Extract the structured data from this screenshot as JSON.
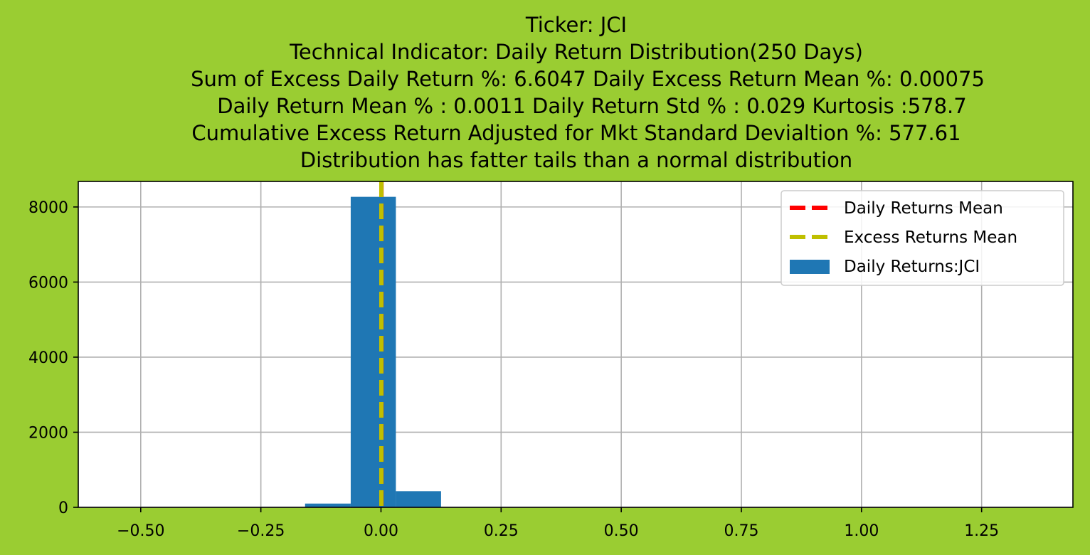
{
  "chart_data": {
    "type": "bar",
    "title_lines": [
      "Ticker: JCI",
      "Technical Indicator: Daily Return Distribution(250 Days)",
      "Sum of Excess Daily Return %: 6.6047   Daily Excess Return Mean %: 0.00075",
      "Daily Return Mean % : 0.0011    Daily Return Std % : 0.029  Kurtosis :578.7",
      "Cumulative Excess Return Adjusted for Mkt Standard Devialtion %: 577.61",
      "Distribution has fatter tails than a normal distribution"
    ],
    "xlabel": "",
    "ylabel": "",
    "xlim": [
      -0.63,
      1.44
    ],
    "ylim": [
      0,
      8680
    ],
    "grid": true,
    "x_tick_values": [
      -0.5,
      -0.25,
      0.0,
      0.25,
      0.5,
      0.75,
      1.0,
      1.25
    ],
    "x_tick_labels": [
      "−0.50",
      "−0.25",
      "0.00",
      "0.25",
      "0.50",
      "0.75",
      "1.00",
      "1.25"
    ],
    "y_tick_values": [
      0,
      2000,
      4000,
      6000,
      8000
    ],
    "y_tick_labels": [
      "0",
      "2000",
      "4000",
      "6000",
      "8000"
    ],
    "histogram": {
      "name": "Daily Returns:JCI",
      "color": "#1f77b4",
      "bins": [
        {
          "x0": -0.158,
          "x1": -0.063,
          "count": 100
        },
        {
          "x0": -0.063,
          "x1": 0.031,
          "count": 8270
        },
        {
          "x0": 0.031,
          "x1": 0.125,
          "count": 430
        }
      ]
    },
    "mean_lines": [
      {
        "name": "Daily Returns Mean",
        "value": 0.0011,
        "color": "#ff0000"
      },
      {
        "name": "Excess Returns Mean",
        "value": 0.00075,
        "color": "#bfbf00"
      }
    ],
    "legend": {
      "position": "top-right",
      "entries": [
        {
          "label": "Daily Returns Mean",
          "kind": "dashed-line",
          "color": "#ff0000"
        },
        {
          "label": "Excess Returns Mean",
          "kind": "dashed-line",
          "color": "#bfbf00"
        },
        {
          "label": "Daily Returns:JCI",
          "kind": "patch",
          "color": "#1f77b4"
        }
      ]
    },
    "colors": {
      "figure_background": "#9acd32",
      "plot_background": "#ffffff",
      "grid": "#b0b0b0"
    }
  }
}
